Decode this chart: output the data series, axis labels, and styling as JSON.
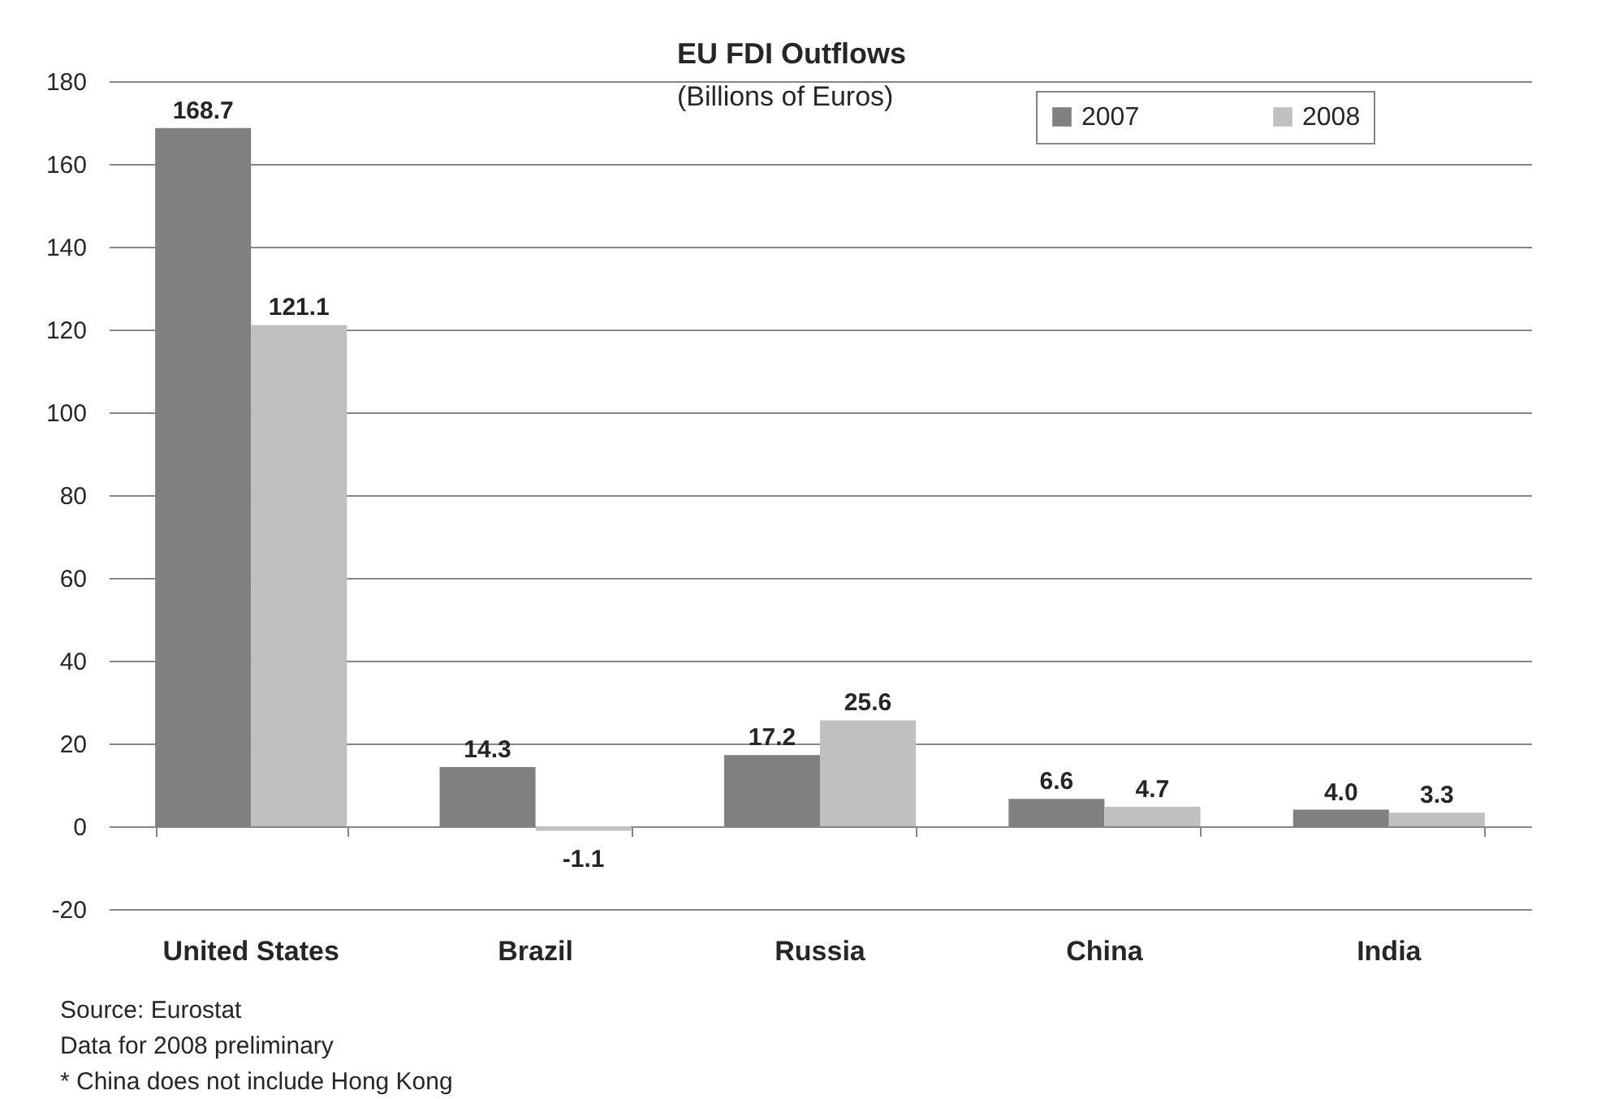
{
  "chart_data": {
    "type": "bar",
    "title": "EU FDI Outflows",
    "subtitle": "(Billions of Euros)",
    "categories": [
      "United States",
      "Brazil",
      "Russia",
      "China",
      "India"
    ],
    "series": [
      {
        "name": "2007",
        "color": "#808080",
        "values": [
          168.7,
          14.3,
          17.2,
          6.6,
          4.0
        ],
        "value_labels": [
          "168.7",
          "14.3",
          "17.2",
          "6.6",
          "4.0"
        ]
      },
      {
        "name": "2008",
        "color": "#c0c0c0",
        "values": [
          121.1,
          -1.1,
          25.6,
          4.7,
          3.3
        ],
        "value_labels": [
          "121.1",
          "-1.1",
          "25.6",
          "4.7",
          "3.3"
        ]
      }
    ],
    "ylim": [
      -20,
      180
    ],
    "yticks": [
      -20,
      0,
      20,
      40,
      60,
      80,
      100,
      120,
      140,
      160,
      180
    ],
    "grid": "y",
    "legend": "top right",
    "annotations": [
      "Source: Eurostat",
      "Data for 2008 preliminary",
      "* China does not include Hong Kong"
    ]
  }
}
